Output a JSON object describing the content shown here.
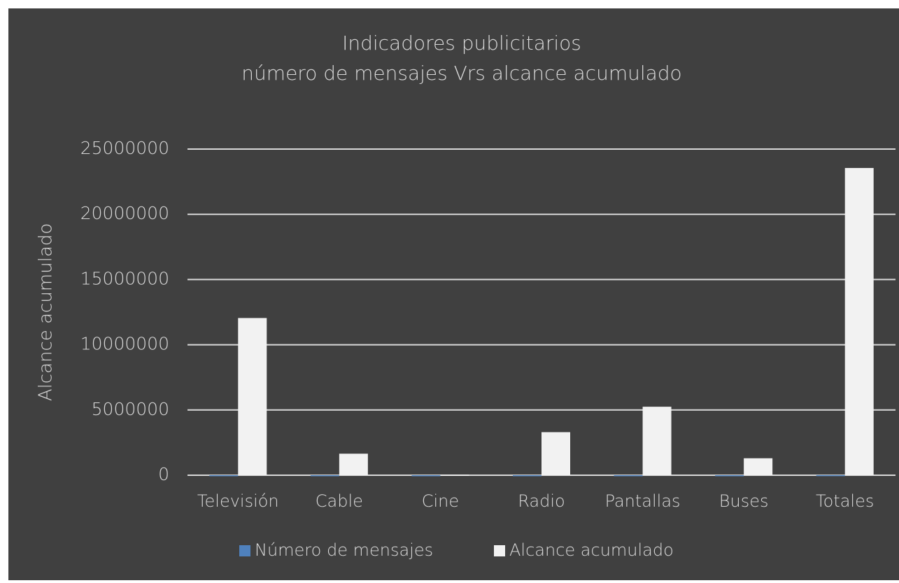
{
  "chart_data": {
    "type": "bar",
    "title": "Indicadores publicitarios",
    "subtitle": "número de mensajes Vrs alcance acumulado",
    "y_label": "Alcance acumulado",
    "categories": [
      "Televisión",
      "Cable",
      "Cine",
      "Radio",
      "Pantallas",
      "Buses",
      "Totales"
    ],
    "series": [
      {
        "name": "Número de mensajes",
        "color": "#4f81bd",
        "values": [
          2000,
          1000,
          500,
          2000,
          1500,
          1000,
          8000
        ]
      },
      {
        "name": "Alcance acumulado",
        "color": "#f2f2f2",
        "values": [
          12050000,
          1650000,
          50000,
          3300000,
          5250000,
          1300000,
          23550000
        ]
      }
    ],
    "ylim": [
      0,
      25000000
    ],
    "yticks": [
      0,
      5000000,
      10000000,
      15000000,
      20000000,
      25000000
    ],
    "grid": true,
    "legend": "bottom"
  }
}
